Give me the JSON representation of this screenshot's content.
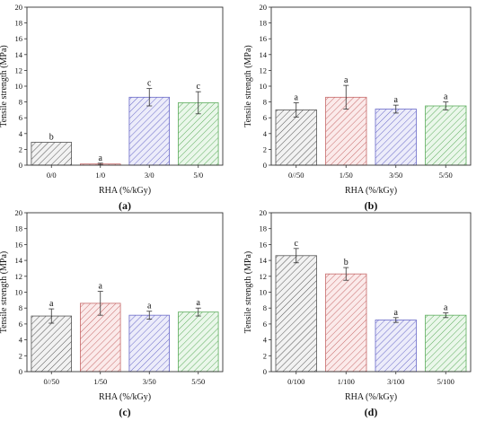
{
  "chart_data": [
    {
      "panel": "(a)",
      "type": "bar",
      "xlabel": "RHA (%/kGy)",
      "ylabel": "Tensile strength (MPa)",
      "ylim": [
        0,
        20
      ],
      "yticks": [
        0,
        2,
        4,
        6,
        8,
        10,
        12,
        14,
        16,
        18,
        20
      ],
      "categories": [
        "0/0",
        "1/0",
        "3/0",
        "5/0"
      ],
      "values": [
        2.9,
        0.15,
        8.6,
        7.9
      ],
      "errors": [
        0.0,
        0.1,
        1.1,
        1.4
      ],
      "letters": [
        "b",
        "a",
        "c",
        "c"
      ],
      "grid": false
    },
    {
      "panel": "(b)",
      "type": "bar",
      "xlabel": "RHA (%/kGy)",
      "ylabel": "Tensile strength (MPa)",
      "ylim": [
        0,
        20
      ],
      "yticks": [
        0,
        2,
        4,
        6,
        8,
        10,
        12,
        14,
        16,
        18,
        20
      ],
      "categories": [
        "0//50",
        "1/50",
        "3/50",
        "5/50"
      ],
      "values": [
        7.0,
        8.6,
        7.1,
        7.5
      ],
      "errors": [
        0.9,
        1.5,
        0.5,
        0.5
      ],
      "letters": [
        "a",
        "a",
        "a",
        "a"
      ],
      "grid": false
    },
    {
      "panel": "(c)",
      "type": "bar",
      "xlabel": "RHA (%/kGy)",
      "ylabel": "Tensile strength (MPa)",
      "ylim": [
        0,
        20
      ],
      "yticks": [
        0,
        2,
        4,
        6,
        8,
        10,
        12,
        14,
        16,
        18,
        20
      ],
      "categories": [
        "0//50",
        "1/50",
        "3/50",
        "5/50"
      ],
      "values": [
        7.0,
        8.6,
        7.1,
        7.5
      ],
      "errors": [
        0.9,
        1.5,
        0.5,
        0.5
      ],
      "letters": [
        "a",
        "a",
        "a",
        "a"
      ],
      "grid": false
    },
    {
      "panel": "(d)",
      "type": "bar",
      "xlabel": "RHA (%/kGy)",
      "ylabel": "Tensile strength (MPa)",
      "ylim": [
        0,
        20
      ],
      "yticks": [
        0,
        2,
        4,
        6,
        8,
        10,
        12,
        14,
        16,
        18,
        20
      ],
      "categories": [
        "0/100",
        "1/100",
        "3/100",
        "5/100"
      ],
      "values": [
        14.6,
        12.3,
        6.5,
        7.1
      ],
      "errors": [
        0.9,
        0.8,
        0.3,
        0.3
      ],
      "letters": [
        "c",
        "b",
        "a",
        "a"
      ],
      "grid": false
    }
  ],
  "colors": {
    "bar_strokes": [
      "#555555",
      "#c76b6b",
      "#6b6bc9",
      "#5fae5f"
    ],
    "bar_fills": [
      "#f2f2f2",
      "#fbeaea",
      "#ececfa",
      "#eaf7ea"
    ]
  }
}
